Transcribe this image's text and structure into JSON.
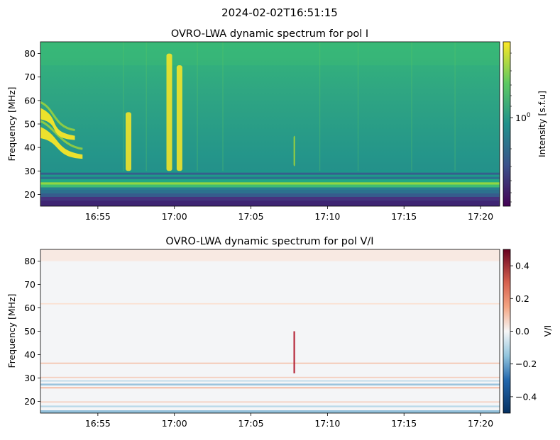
{
  "figure": {
    "suptitle": "2024-02-02T16:51:15"
  },
  "chart_data": [
    {
      "type": "heatmap",
      "title": "OVRO-LWA dynamic spectrum for pol I",
      "xlabel": "",
      "ylabel": "Frequency [MHz]",
      "x_ticks": [
        "16:55",
        "17:00",
        "17:05",
        "17:10",
        "17:15",
        "17:20"
      ],
      "x_range": [
        "16:51:15",
        "17:21:15"
      ],
      "y_ticks": [
        20,
        30,
        40,
        50,
        60,
        70,
        80
      ],
      "ylim": [
        15,
        85
      ],
      "colormap": "viridis",
      "colorbar": {
        "label": "Intensity [s.f.u]",
        "scale": "log",
        "tick_label": "10",
        "tick_exp": "0"
      },
      "features": [
        {
          "name": "drifting burst lane 1",
          "start_time": "16:51:15",
          "end_time": "16:54:00",
          "freq_start": 47,
          "freq_end": 37
        },
        {
          "name": "drifting burst lane 2",
          "start_time": "16:51:15",
          "end_time": "16:53:30",
          "freq_start": 55,
          "freq_end": 45
        },
        {
          "name": "vertical burst",
          "time": "16:59:40",
          "freq_range": [
            30,
            80
          ]
        },
        {
          "name": "vertical burst",
          "time": "17:00:20",
          "freq_range": [
            30,
            75
          ]
        },
        {
          "name": "vertical burst",
          "time": "16:57:00",
          "freq_range": [
            30,
            55
          ]
        },
        {
          "name": "faint burst",
          "time": "17:07:50",
          "freq_range": [
            32,
            45
          ]
        }
      ]
    },
    {
      "type": "heatmap",
      "title": "OVRO-LWA dynamic spectrum for pol V/I",
      "xlabel": "",
      "ylabel": "Frequency [MHz]",
      "x_ticks": [
        "16:55",
        "17:00",
        "17:05",
        "17:10",
        "17:15",
        "17:20"
      ],
      "x_range": [
        "16:51:15",
        "17:21:15"
      ],
      "y_ticks": [
        20,
        30,
        40,
        50,
        60,
        70,
        80
      ],
      "ylim": [
        15,
        85
      ],
      "colormap": "RdBu_r",
      "colorbar": {
        "label": "V/I",
        "range": [
          -0.5,
          0.5
        ],
        "ticks": [
          "0.4",
          "0.2",
          "0.0",
          "−0.2",
          "−0.4"
        ]
      },
      "features": [
        {
          "name": "polarized burst",
          "time": "17:07:50",
          "freq_range": [
            32,
            50
          ],
          "value": 0.4
        }
      ]
    }
  ]
}
